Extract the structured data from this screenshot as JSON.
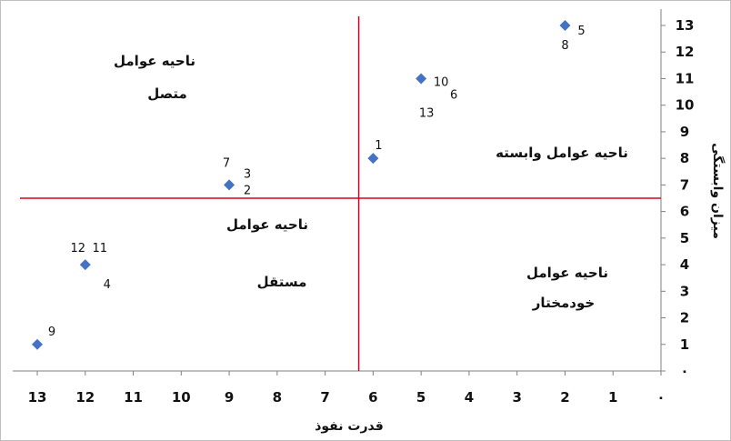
{
  "chart_data": {
    "type": "scatter",
    "xlabel": "قدرت نفوذ",
    "ylabel": "میزان وابستگی",
    "x_axis_reversed": true,
    "xlim": [
      0,
      13
    ],
    "ylim": [
      0,
      13
    ],
    "x_ticks": [
      "۰",
      "1",
      "2",
      "3",
      "4",
      "5",
      "6",
      "7",
      "8",
      "9",
      "10",
      "11",
      "12",
      "13"
    ],
    "y_ticks": [
      "۰",
      "1",
      "2",
      "3",
      "4",
      "5",
      "6",
      "7",
      "8",
      "9",
      "10",
      "11",
      "12",
      "13"
    ],
    "marker_color": "#4472C4",
    "divider_color": "#D9001B",
    "dividers": {
      "x": 6.3,
      "y": 6.5
    },
    "points": [
      {
        "x": 2,
        "y": 13,
        "labels": [
          "5",
          "8"
        ]
      },
      {
        "x": 5,
        "y": 11,
        "labels": [
          "10",
          "6",
          "13"
        ]
      },
      {
        "x": 6,
        "y": 8,
        "labels": [
          "1"
        ]
      },
      {
        "x": 9,
        "y": 7,
        "labels": [
          "7",
          "3",
          "2"
        ]
      },
      {
        "x": 12,
        "y": 4,
        "labels": [
          "12",
          "11",
          "4"
        ]
      },
      {
        "x": 13,
        "y": 1,
        "labels": [
          "9"
        ]
      }
    ],
    "regions": [
      {
        "id": "linkage",
        "lines": [
          "ناحیه عوامل",
          "متصل"
        ]
      },
      {
        "id": "dependent",
        "lines": [
          "ناحیه عوامل وابسته"
        ]
      },
      {
        "id": "independent",
        "lines": [
          "ناحیه عوامل",
          "مستقل"
        ]
      },
      {
        "id": "autonomous",
        "lines": [
          "ناحیه عوامل",
          "خودمختار"
        ]
      }
    ],
    "grid": false,
    "legend": "none"
  }
}
